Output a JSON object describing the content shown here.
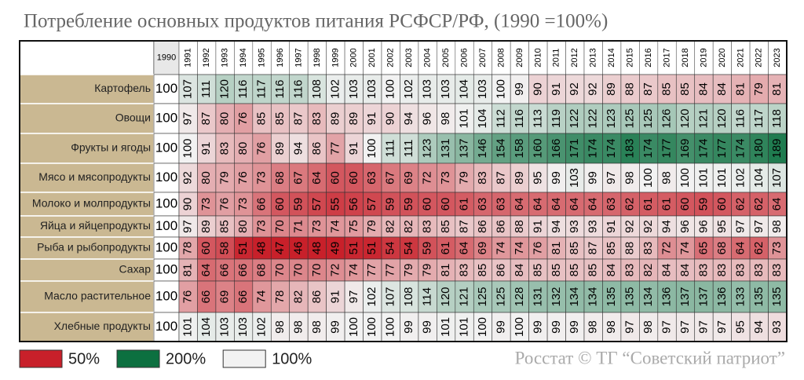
{
  "title": "Потребление основных продуктов питания РСФСР/РФ, (1990 =100%)",
  "source": "Росстат © ТГ “Советский патриот”",
  "legend": {
    "items": [
      {
        "value": 50,
        "label": "50%",
        "color": "#c8202a"
      },
      {
        "value": 200,
        "label": "200%",
        "color": "#0c7040"
      },
      {
        "value": 100,
        "label": "100%",
        "color": "#f2f2f2"
      }
    ]
  },
  "table": {
    "years": [
      1990,
      1991,
      1992,
      1993,
      1994,
      1995,
      1996,
      1997,
      1998,
      1999,
      2000,
      2001,
      2002,
      2003,
      2004,
      2005,
      2006,
      2007,
      2008,
      2009,
      2010,
      2011,
      2012,
      2013,
      2014,
      2015,
      2016,
      2017,
      2018,
      2019,
      2020,
      2021,
      2022,
      2023
    ],
    "rows": [
      {
        "label": "Картофель",
        "values": [
          100,
          107,
          111,
          120,
          116,
          117,
          116,
          116,
          108,
          102,
          103,
          103,
          100,
          102,
          103,
          103,
          104,
          103,
          100,
          99,
          90,
          91,
          92,
          92,
          89,
          88,
          87,
          85,
          85,
          84,
          84,
          81,
          79,
          81
        ]
      },
      {
        "label": "Овощи",
        "values": [
          100,
          97,
          87,
          80,
          76,
          85,
          85,
          87,
          83,
          89,
          89,
          91,
          90,
          94,
          96,
          98,
          101,
          104,
          112,
          116,
          113,
          119,
          122,
          122,
          123,
          125,
          125,
          126,
          120,
          121,
          120,
          116,
          117,
          118
        ]
      },
      {
        "label": "Фрукты и ягоды",
        "values": [
          100,
          100,
          91,
          83,
          80,
          76,
          89,
          94,
          86,
          77,
          91,
          100,
          111,
          111,
          123,
          131,
          137,
          146,
          154,
          158,
          160,
          166,
          171,
          174,
          174,
          183,
          174,
          177,
          169,
          174,
          177,
          174,
          180,
          189
        ]
      },
      {
        "label": "Мясо и мясопродукты",
        "values": [
          100,
          92,
          80,
          79,
          76,
          73,
          68,
          67,
          64,
          60,
          60,
          63,
          67,
          69,
          72,
          73,
          79,
          83,
          87,
          89,
          95,
          99,
          103,
          99,
          97,
          98,
          100,
          98,
          100,
          101,
          101,
          102,
          104,
          107
        ]
      },
      {
        "label": "Молоко и молпродукты",
        "values": [
          100,
          90,
          73,
          76,
          73,
          66,
          60,
          59,
          57,
          55,
          56,
          57,
          59,
          59,
          60,
          60,
          61,
          63,
          63,
          64,
          64,
          64,
          64,
          64,
          63,
          62,
          61,
          61,
          60,
          59,
          60,
          62,
          62,
          64
        ]
      },
      {
        "label": "Яйца и яйцепродукты",
        "values": [
          100,
          97,
          89,
          85,
          80,
          73,
          70,
          71,
          73,
          74,
          75,
          79,
          82,
          82,
          83,
          85,
          87,
          86,
          86,
          88,
          91,
          94,
          93,
          93,
          91,
          92,
          92,
          94,
          96,
          96,
          95,
          97,
          97,
          98
        ]
      },
      {
        "label": "Рыба и рыбопродукты",
        "values": [
          100,
          78,
          60,
          58,
          51,
          48,
          47,
          46,
          48,
          49,
          51,
          51,
          54,
          54,
          59,
          61,
          64,
          69,
          74,
          74,
          76,
          81,
          85,
          87,
          85,
          88,
          83,
          72,
          74,
          65,
          68,
          64,
          62,
          73
        ]
      },
      {
        "label": "Сахар",
        "values": [
          100,
          81,
          64,
          66,
          66,
          68,
          70,
          70,
          70,
          72,
          74,
          77,
          77,
          79,
          79,
          81,
          83,
          85,
          86,
          84,
          85,
          85,
          85,
          85,
          84,
          83,
          82,
          84,
          84,
          83,
          83,
          83,
          83,
          83
        ]
      },
      {
        "label": "Масло растительное",
        "values": [
          100,
          76,
          66,
          69,
          66,
          74,
          78,
          82,
          86,
          91,
          97,
          102,
          107,
          108,
          114,
          120,
          121,
          125,
          125,
          128,
          131,
          132,
          134,
          134,
          135,
          135,
          134,
          136,
          137,
          137,
          136,
          133,
          135,
          135
        ]
      },
      {
        "label": "Хлебные продукты",
        "values": [
          100,
          101,
          104,
          103,
          103,
          102,
          98,
          98,
          98,
          99,
          100,
          100,
          100,
          99,
          99,
          101,
          101,
          100,
          99,
          100,
          99,
          99,
          99,
          98,
          98,
          97,
          98,
          97,
          97,
          97,
          97,
          95,
          94,
          93
        ]
      }
    ]
  }
}
